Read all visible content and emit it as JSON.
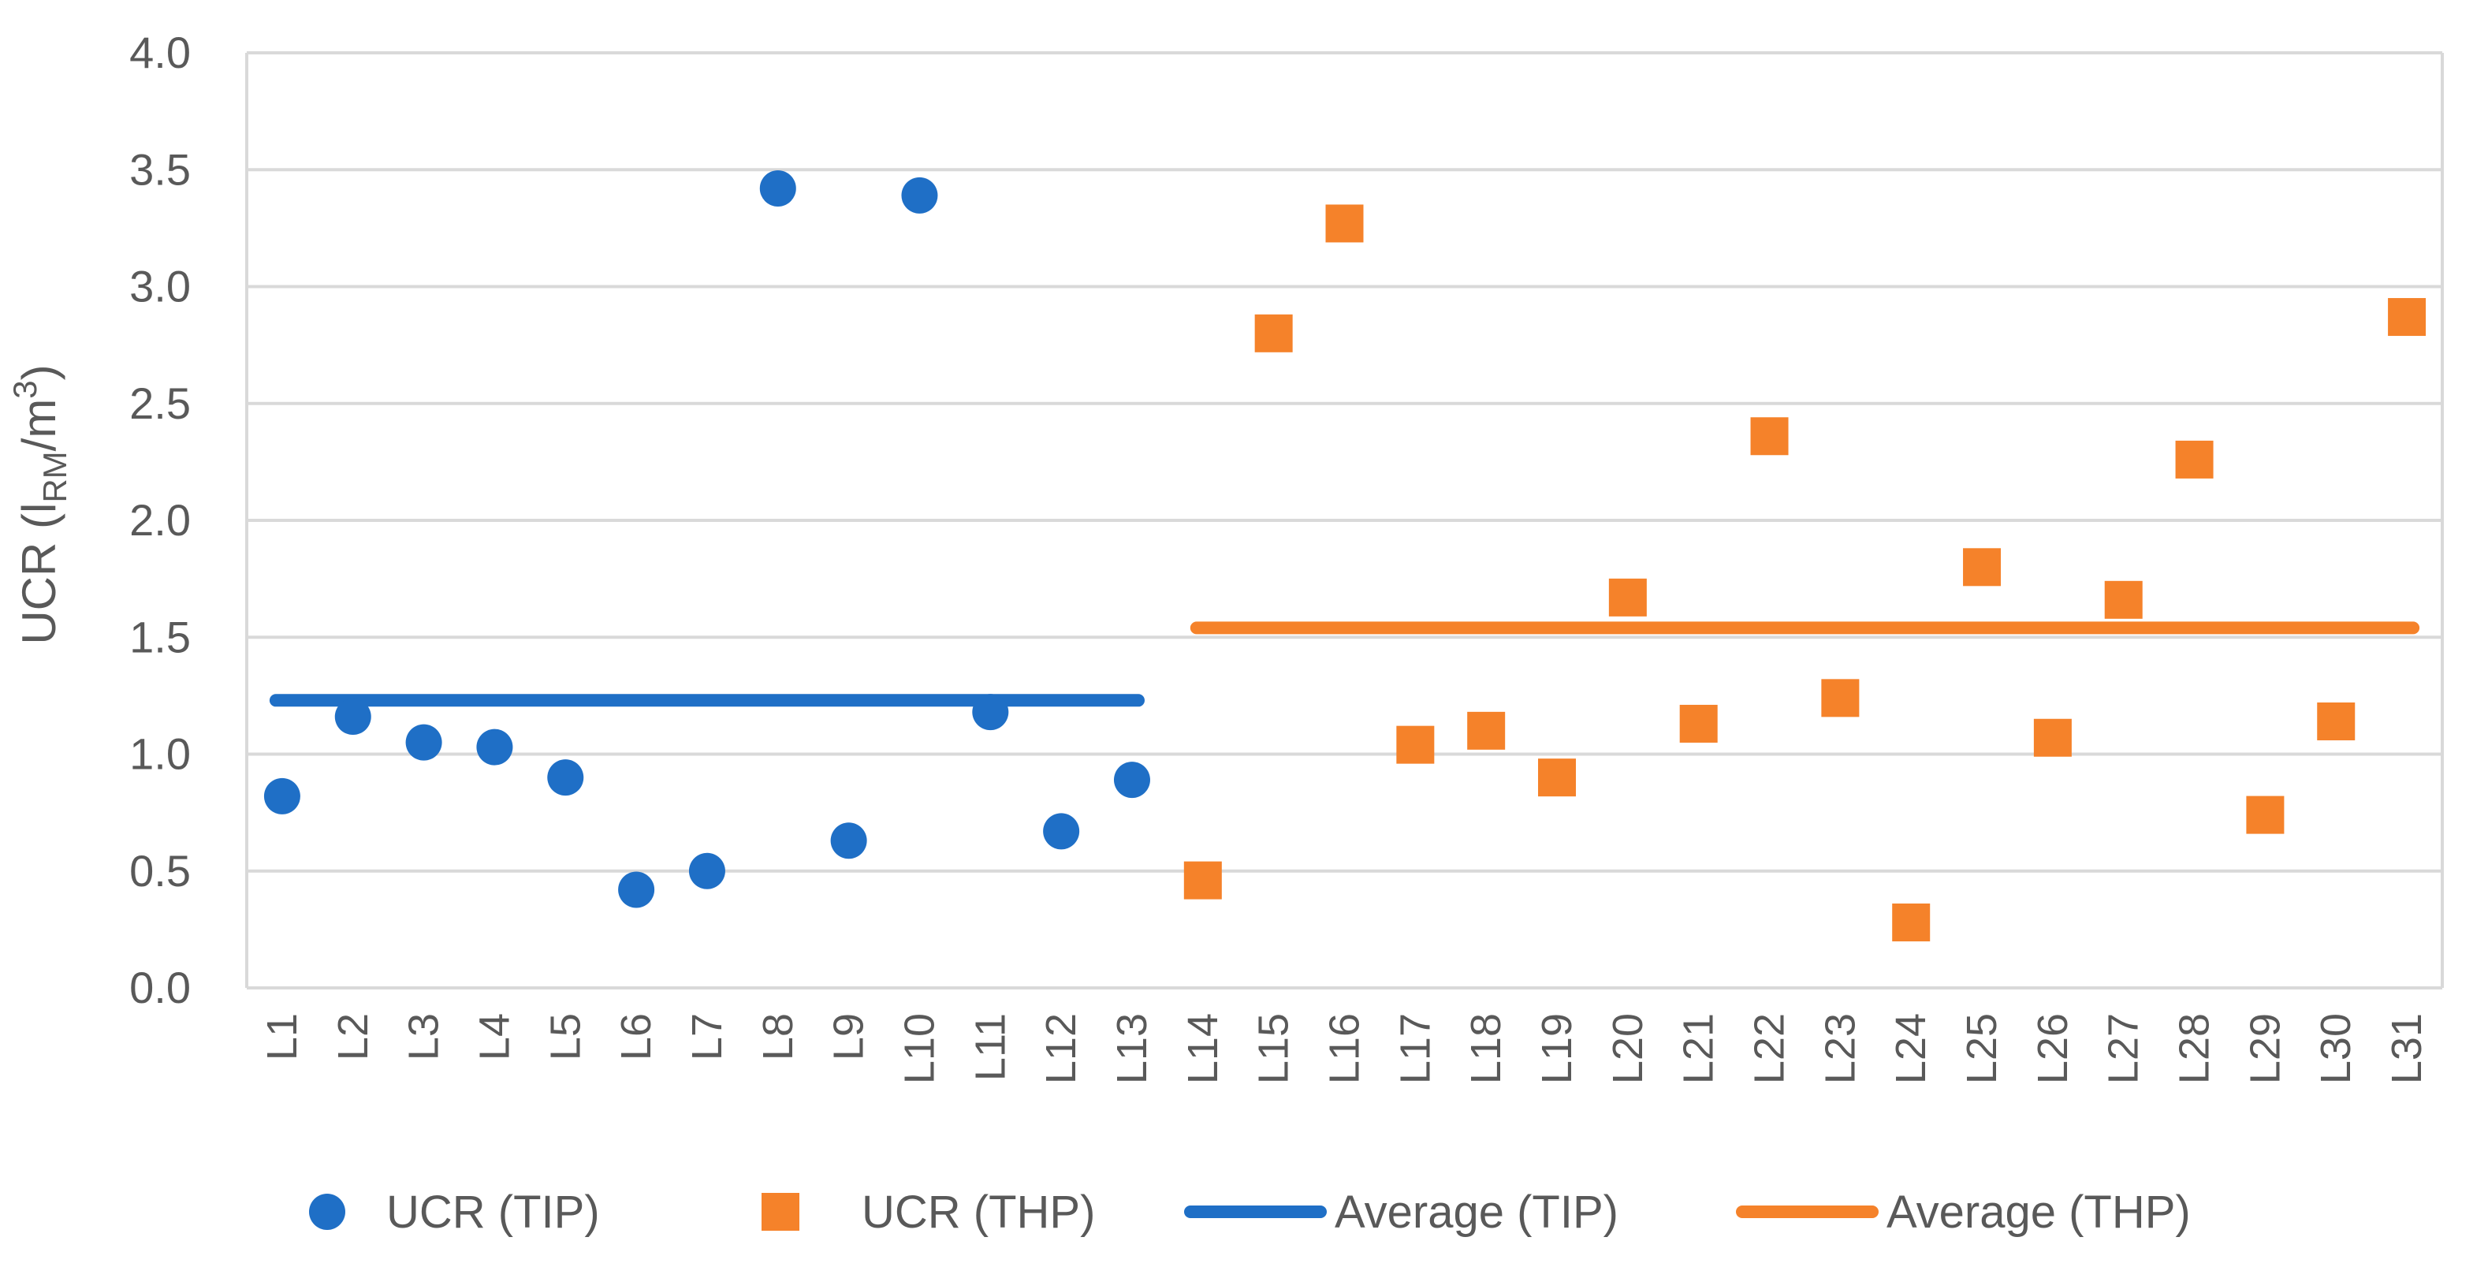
{
  "chart_data": {
    "type": "scatter",
    "title": "",
    "xlabel": "",
    "ylabel": {
      "prefix": "UCR (l",
      "subscript": "RM",
      "middle": "/m",
      "superscript": "3",
      "suffix": ")"
    },
    "ylim": [
      0,
      4
    ],
    "yticks": [
      "0.0",
      "0.5",
      "1.0",
      "1.5",
      "2.0",
      "2.5",
      "3.0",
      "3.5",
      "4.0"
    ],
    "grid": true,
    "legend_position": "bottom",
    "categories": [
      "L1",
      "L2",
      "L3",
      "L4",
      "L5",
      "L6",
      "L7",
      "L8",
      "L9",
      "L10",
      "L11",
      "L12",
      "L13",
      "L14",
      "L15",
      "L16",
      "L17",
      "L18",
      "L19",
      "L20",
      "L21",
      "L22",
      "L23",
      "L24",
      "L25",
      "L26",
      "L27",
      "L28",
      "L29",
      "L30",
      "L31"
    ],
    "series": [
      {
        "name": "UCR (TIP)",
        "marker": "circle",
        "color": "#1f6fc6",
        "categories": [
          "L1",
          "L2",
          "L3",
          "L4",
          "L5",
          "L6",
          "L7",
          "L8",
          "L9",
          "L10",
          "L11",
          "L12",
          "L13"
        ],
        "values": [
          0.82,
          1.16,
          1.05,
          1.03,
          0.9,
          0.42,
          0.5,
          3.42,
          0.63,
          3.39,
          1.18,
          0.67,
          0.89
        ]
      },
      {
        "name": "UCR (THP)",
        "marker": "square",
        "color": "#f5822a",
        "categories": [
          "L14",
          "L15",
          "L16",
          "L17",
          "L18",
          "L19",
          "L20",
          "L21",
          "L22",
          "L23",
          "L24",
          "L25",
          "L26",
          "L27",
          "L28",
          "L29",
          "L30",
          "L31"
        ],
        "values": [
          0.46,
          2.8,
          3.27,
          1.04,
          1.1,
          0.9,
          1.67,
          1.13,
          2.36,
          1.24,
          0.28,
          1.8,
          1.07,
          1.66,
          2.26,
          0.74,
          1.14,
          2.87
        ]
      },
      {
        "name": "Average (TIP)",
        "marker": "line",
        "color": "#1f6fc6",
        "from": "L1",
        "to": "L13",
        "value": 1.23
      },
      {
        "name": "Average (THP)",
        "marker": "line",
        "color": "#f5822a",
        "from": "L14",
        "to": "L31",
        "value": 1.54
      }
    ]
  }
}
